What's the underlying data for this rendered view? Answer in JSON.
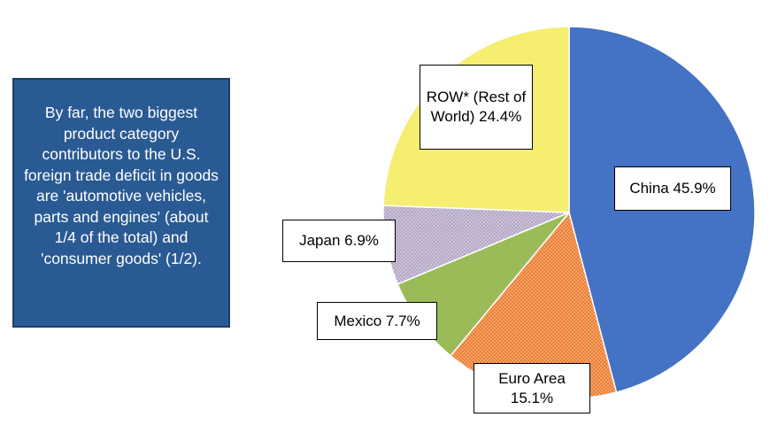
{
  "note": {
    "text": "By far, the two biggest product category contributors to the U.S. foreign trade deficit in goods are 'automotive vehicles, parts and engines' (about 1/4 of the total) and 'consumer goods' (1/2)."
  },
  "colors": {
    "china": "#4472c4",
    "euro": "#ed7d31",
    "mexico": "#9bbb59",
    "japan": "#b4a7c6",
    "row": "#f5ee70",
    "note_bg": "#2a5a93"
  },
  "chart_data": {
    "type": "pie",
    "title": "",
    "slices": [
      {
        "key": "china",
        "label": "China 45.9%",
        "value": 45.9,
        "color": "#4472c4",
        "pattern": "none"
      },
      {
        "key": "euro",
        "label": "Euro Area 15.1%",
        "value": 15.1,
        "color": "#ed7d31",
        "pattern": "dots"
      },
      {
        "key": "mexico",
        "label": "Mexico 7.7%",
        "value": 7.7,
        "color": "#9bbb59",
        "pattern": "none"
      },
      {
        "key": "japan",
        "label": "Japan 6.9%",
        "value": 6.9,
        "color": "#b4a7c6",
        "pattern": "dots"
      },
      {
        "key": "row",
        "label": "ROW* (Rest of World) 24.4%",
        "value": 24.4,
        "color": "#f5ee70",
        "pattern": "none"
      }
    ]
  },
  "labels": {
    "china": "China 45.9%",
    "euro": "Euro Area 15.1%",
    "mexico": "Mexico 7.7%",
    "japan": "Japan 6.9%",
    "row": "ROW* (Rest of World) 24.4%"
  }
}
